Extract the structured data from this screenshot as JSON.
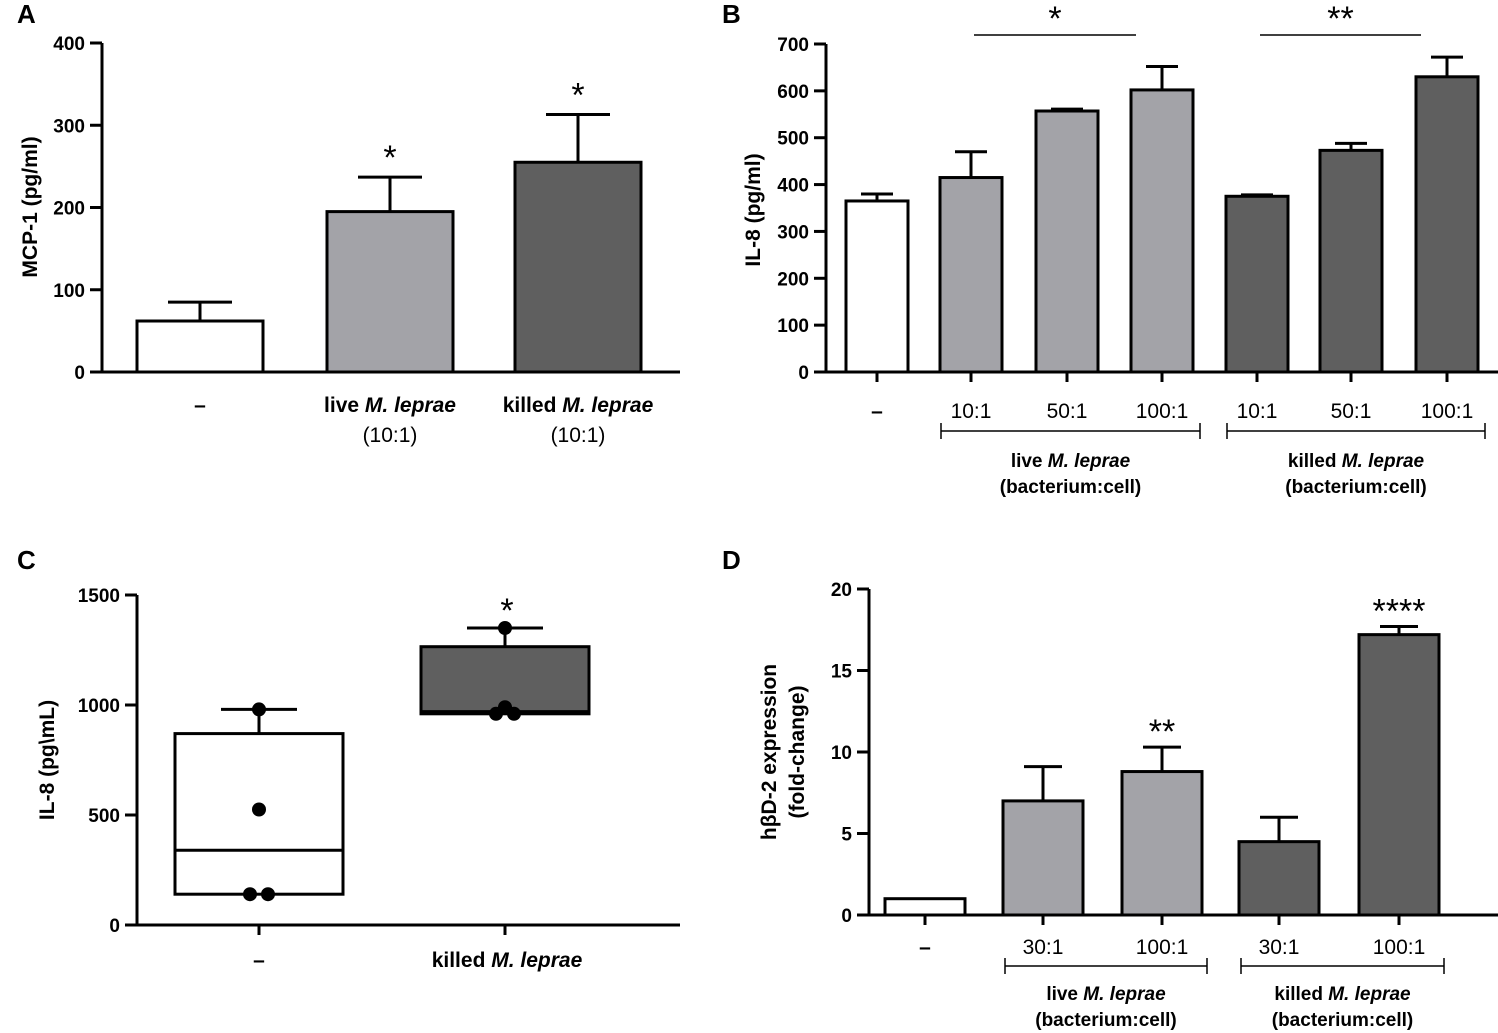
{
  "colors": {
    "none": "#ffffff",
    "live": "#a3a3a8",
    "killed": "#5f5f5f",
    "ink": "#000000"
  },
  "chart_data": [
    {
      "panel": "A",
      "type": "bar",
      "ylabel": "MCP-1 (pg/ml)",
      "ylim": [
        0,
        400
      ],
      "yticks": [
        "0",
        "100",
        "200",
        "300",
        "400"
      ],
      "bars": [
        {
          "value": 62,
          "err": 23,
          "group": "none",
          "sig": ""
        },
        {
          "value": 195,
          "err": 42,
          "group": "live",
          "sig": "*"
        },
        {
          "value": 255,
          "err": 58,
          "group": "killed",
          "sig": "*"
        }
      ],
      "categories": [
        {
          "prefix": "",
          "species": "",
          "line2": "",
          "dash": "–"
        },
        {
          "prefix": "live ",
          "species": "M. leprae",
          "line2": "(10:1)",
          "dash": ""
        },
        {
          "prefix": "killed ",
          "species": "M. leprae",
          "line2": "(10:1)",
          "dash": ""
        }
      ]
    },
    {
      "panel": "B",
      "type": "bar",
      "ylabel": "IL-8 (pg/ml)",
      "ylim": [
        0,
        700
      ],
      "yticks": [
        "0",
        "100",
        "200",
        "300",
        "400",
        "500",
        "600",
        "700"
      ],
      "bars": [
        {
          "value": 365,
          "err": 15,
          "group": "none",
          "tick": "–"
        },
        {
          "value": 415,
          "err": 55,
          "group": "live",
          "tick": "10:1"
        },
        {
          "value": 557,
          "err": 4,
          "group": "live",
          "tick": "50:1"
        },
        {
          "value": 602,
          "err": 50,
          "group": "live",
          "tick": "100:1"
        },
        {
          "value": 375,
          "err": 3,
          "group": "killed",
          "tick": "10:1"
        },
        {
          "value": 473,
          "err": 15,
          "group": "killed",
          "tick": "50:1"
        },
        {
          "value": 630,
          "err": 42,
          "group": "killed",
          "tick": "100:1"
        }
      ],
      "sig_brackets": [
        {
          "from": 1,
          "to": 3,
          "label": "*"
        },
        {
          "from": 4,
          "to": 6,
          "label": "**"
        }
      ],
      "groups": [
        {
          "from": 1,
          "to": 3,
          "prefix": "live ",
          "species": "M. leprae",
          "line2": "(bacterium:cell)"
        },
        {
          "from": 4,
          "to": 6,
          "prefix": "killed ",
          "species": "M. leprae",
          "line2": "(bacterium:cell)"
        }
      ]
    },
    {
      "panel": "C",
      "type": "box",
      "ylabel": "IL-8 (pg\\mL)",
      "ylim": [
        0,
        1500
      ],
      "yticks": [
        "0",
        "500",
        "1000",
        "1500"
      ],
      "boxes": [
        {
          "group": "none",
          "min": 140,
          "q1": 140,
          "median": 340,
          "q3": 870,
          "max": 980,
          "points": [
            140,
            140,
            525,
            980
          ],
          "sig": "",
          "dash": "–",
          "prefix": "",
          "species": ""
        },
        {
          "group": "killed",
          "min": 960,
          "q1": 960,
          "median": 970,
          "q3": 1265,
          "max": 1350,
          "points": [
            960,
            960,
            990,
            1350
          ],
          "sig": "*",
          "dash": "",
          "prefix": "killed ",
          "species": "M. leprae"
        }
      ]
    },
    {
      "panel": "D",
      "type": "bar",
      "ylabel_line1": "hβD-2 expression",
      "ylabel_line2": "(fold-change)",
      "ylim": [
        0,
        20
      ],
      "yticks": [
        "0",
        "5",
        "10",
        "15",
        "20"
      ],
      "bars": [
        {
          "value": 1.0,
          "err": 0,
          "group": "none",
          "tick": "–",
          "sig": ""
        },
        {
          "value": 7.0,
          "err": 2.1,
          "group": "live",
          "tick": "30:1",
          "sig": ""
        },
        {
          "value": 8.8,
          "err": 1.5,
          "group": "live",
          "tick": "100:1",
          "sig": "**"
        },
        {
          "value": 4.5,
          "err": 1.5,
          "group": "killed",
          "tick": "30:1",
          "sig": ""
        },
        {
          "value": 17.2,
          "err": 0.5,
          "group": "killed",
          "tick": "100:1",
          "sig": "****"
        }
      ],
      "groups": [
        {
          "from": 1,
          "to": 2,
          "prefix": "live ",
          "species": "M. leprae",
          "line2": "(bacterium:cell)"
        },
        {
          "from": 3,
          "to": 4,
          "prefix": "killed ",
          "species": "M. leprae",
          "line2": "(bacterium:cell)"
        }
      ]
    }
  ]
}
